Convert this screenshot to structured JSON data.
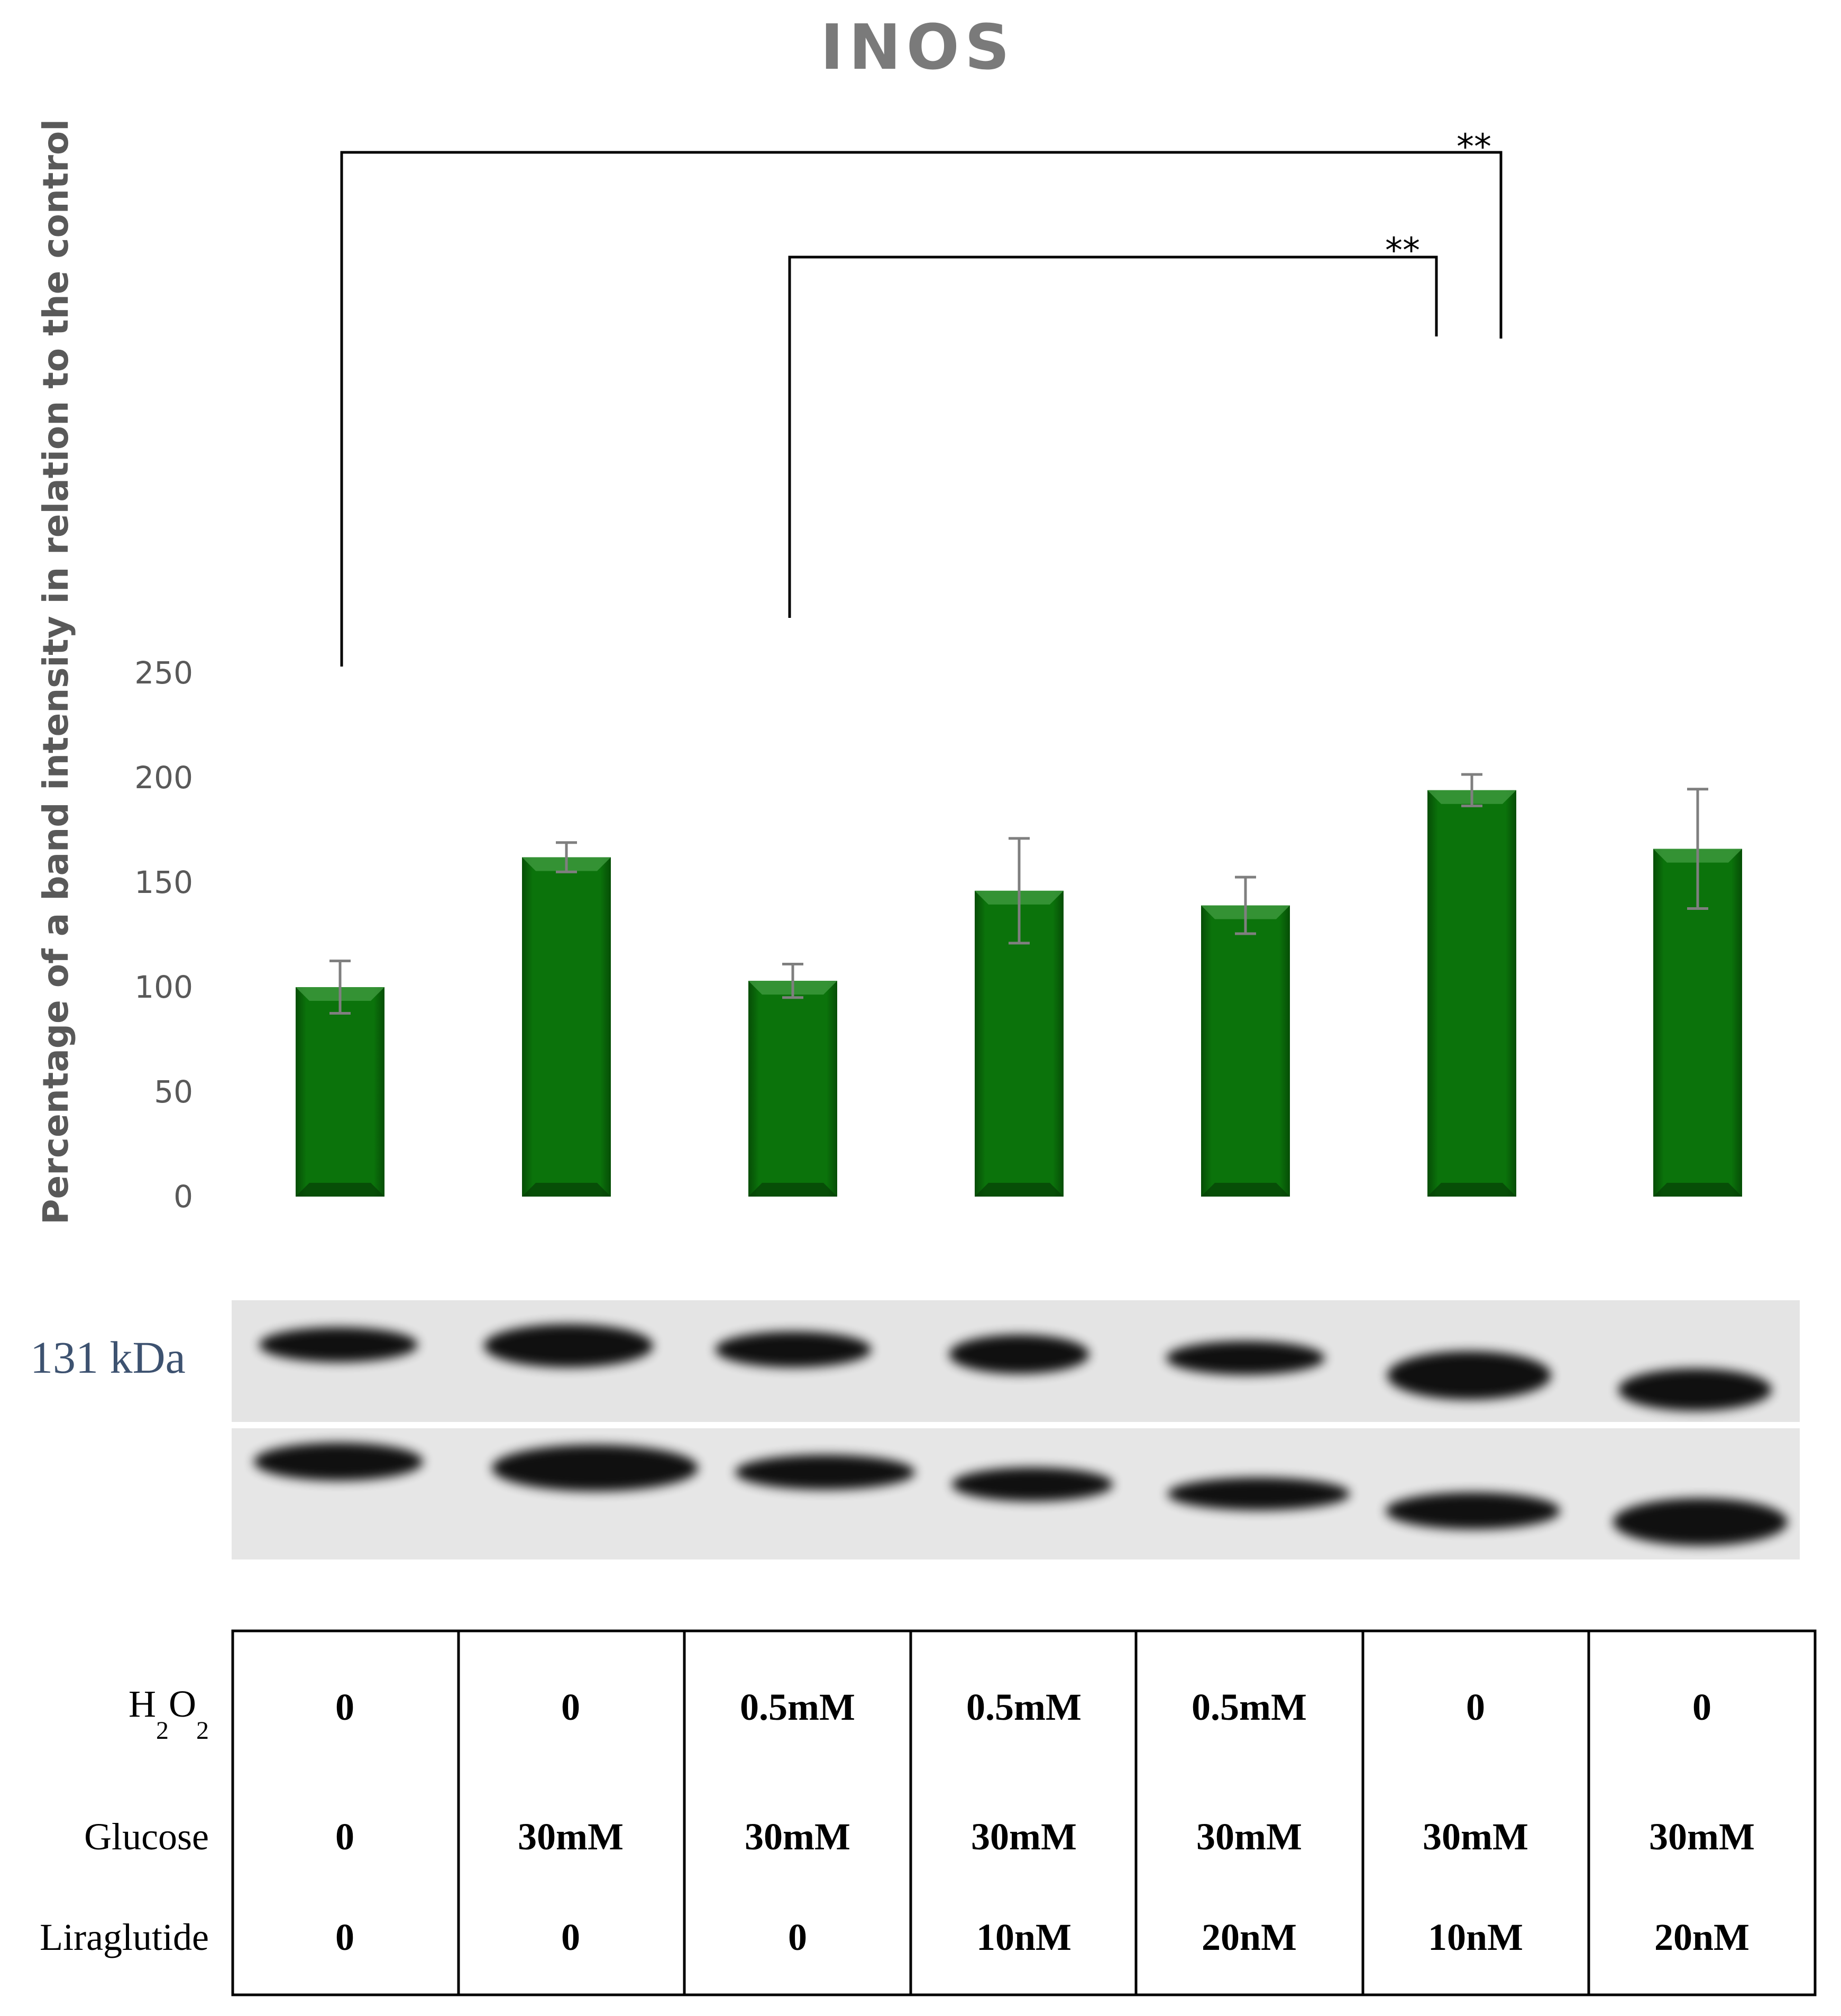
{
  "chart_data": {
    "type": "bar",
    "title": "INOS",
    "ylabel": "Percentage of a band intensity in relation to the control",
    "ylim": [
      0,
      250
    ],
    "yticks": [
      0,
      50,
      100,
      150,
      200,
      250
    ],
    "values": [
      100,
      162,
      103,
      146,
      139,
      194,
      166
    ],
    "errors": [
      12.5,
      7,
      8,
      25,
      13.5,
      7.5,
      28.5
    ],
    "bar_color": "#0a6a0a",
    "error_color": "#7f7f7f",
    "grid": false,
    "significance": [
      {
        "from": 0,
        "to": 5,
        "label": "**"
      },
      {
        "from": 2,
        "to": 5,
        "label": "**"
      }
    ]
  },
  "blot": {
    "label": "131 kDa"
  },
  "conditions": {
    "rows": [
      {
        "label_main": "H",
        "label_sub1": "2",
        "label_mid": "O",
        "label_sub2": "2",
        "values": [
          "0",
          "0",
          "0.5mM",
          "0.5mM",
          "0.5mM",
          "0",
          "0"
        ]
      },
      {
        "label": "Glucose",
        "values": [
          "0",
          "30mM",
          "30mM",
          "30mM",
          "30mM",
          "30mM",
          "30mM"
        ]
      },
      {
        "label": "Liraglutide",
        "values": [
          "0",
          "0",
          "0",
          "10nM",
          "20nM",
          "10nM",
          "20nM"
        ]
      }
    ]
  }
}
